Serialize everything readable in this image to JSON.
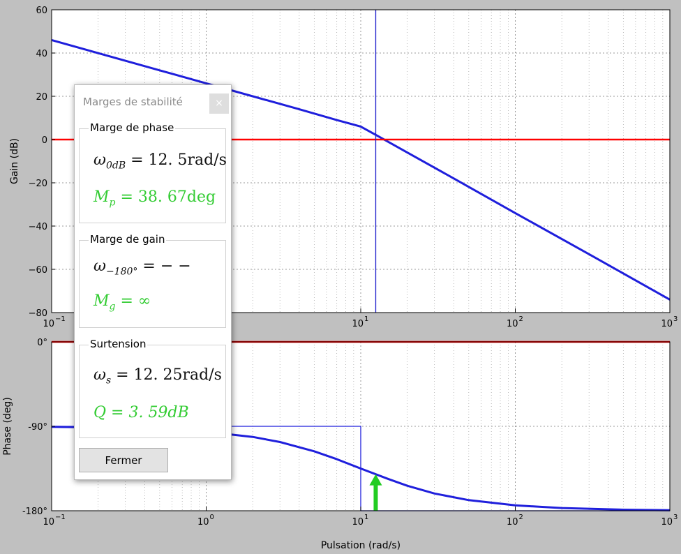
{
  "chart_data": [
    {
      "type": "line",
      "title": "",
      "xlabel": "",
      "ylabel": "Gain (dB)",
      "xscale": "log",
      "xlim": [
        0.1,
        1000
      ],
      "ylim": [
        -80,
        60
      ],
      "yticks": [
        "60",
        "40",
        "20",
        "0",
        "−20",
        "−40",
        "−60",
        "−80"
      ],
      "xticks": [
        {
          "base": "10",
          "exp": "−1"
        },
        {
          "base": "10",
          "exp": "0"
        },
        {
          "base": "10",
          "exp": "1"
        },
        {
          "base": "10",
          "exp": "2"
        },
        {
          "base": "10",
          "exp": "3"
        }
      ],
      "grid": true,
      "series": [
        {
          "color": "#1f1fdc",
          "x": [
            0.1,
            0.5,
            1,
            2,
            4,
            7,
            10,
            13,
            20,
            40,
            100,
            300,
            1000
          ],
          "y": [
            46,
            32,
            26,
            20,
            14,
            9,
            6,
            1.5,
            -6,
            -18,
            -34,
            -53,
            -74
          ]
        },
        {
          "color": "#1f1fdc",
          "x": [
            0.1,
            10,
            1000
          ],
          "y": [
            46,
            6,
            -74
          ]
        },
        {
          "color": "#ff0000",
          "x": [
            0.1,
            1000
          ],
          "y": [
            0,
            0
          ]
        },
        {
          "color": "#2222cc",
          "x": [
            12.5,
            12.5
          ],
          "y": [
            -80,
            60
          ]
        }
      ]
    },
    {
      "type": "line",
      "title": "",
      "xlabel": "Pulsation (rad/s)",
      "ylabel": "Phase (deg)",
      "xscale": "log",
      "xlim": [
        0.1,
        1000
      ],
      "ylim": [
        -180,
        0
      ],
      "yticks": [
        "0°",
        "-90°",
        "-180°"
      ],
      "xticks": [
        {
          "base": "10",
          "exp": "−1"
        },
        {
          "base": "10",
          "exp": "0"
        },
        {
          "base": "10",
          "exp": "1"
        },
        {
          "base": "10",
          "exp": "2"
        },
        {
          "base": "10",
          "exp": "3"
        }
      ],
      "grid": true,
      "series": [
        {
          "color": "#1f1fdc",
          "x": [
            0.1,
            0.2,
            0.5,
            1,
            2,
            3,
            5,
            7,
            10,
            15,
            20,
            30,
            50,
            100,
            200,
            500,
            1000
          ],
          "y": [
            -90.6,
            -91.1,
            -92.9,
            -95.7,
            -101.3,
            -106.7,
            -116.6,
            -125,
            -135,
            -146,
            -153.4,
            -161.6,
            -168.7,
            -174.3,
            -177.1,
            -178.9,
            -179.4
          ]
        },
        {
          "color": "#1f1fdc",
          "x": [
            0.1,
            10,
            10,
            1000
          ],
          "y": [
            -90,
            -90,
            -180,
            -180
          ]
        },
        {
          "color": "#ff0000",
          "x": [
            0.1,
            1000
          ],
          "y": [
            0,
            0
          ]
        }
      ],
      "annotations": [
        {
          "type": "arrow",
          "color": "#22cc22",
          "x": 12.5,
          "y_from": -180,
          "y_to": -141
        }
      ]
    }
  ],
  "dialog": {
    "title": "Marges de stabilité",
    "close_symbol": "×",
    "phase_group": {
      "label": "Marge de phase",
      "omega_symbol": "ω",
      "omega_sub": "0dB",
      "omega_value": " = 12. 5rad/s",
      "margin_symbol": "M",
      "margin_sub": "p",
      "margin_value": " = 38. 67deg"
    },
    "gain_group": {
      "label": "Marge de gain",
      "omega_symbol": "ω",
      "omega_sub": "−180°",
      "omega_value": " = − −",
      "margin_symbol": "M",
      "margin_sub": "g",
      "margin_value": " = ∞"
    },
    "surtension_group": {
      "label": "Surtension",
      "omega_symbol": "ω",
      "omega_sub": "s",
      "omega_value": " = 12. 25rad/s",
      "q_value": "Q = 3. 59dB"
    },
    "close_button": "Fermer"
  }
}
